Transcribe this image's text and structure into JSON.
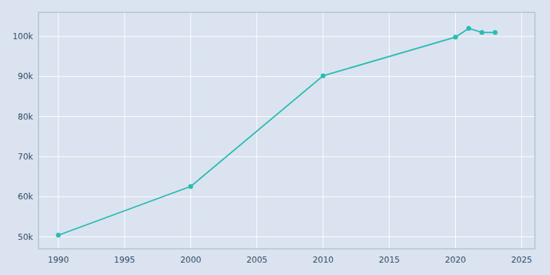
{
  "chart_data": {
    "type": "line",
    "x": [
      1990,
      2000,
      2010,
      2020,
      2021,
      2022,
      2023
    ],
    "values": [
      50418,
      62582,
      90173,
      99818,
      102000,
      101000,
      101000
    ],
    "color": "#2abcb4",
    "marker": "circle",
    "xlim": [
      1988.5,
      2026
    ],
    "ylim": [
      47000,
      106000
    ],
    "xticks": [
      1990,
      1995,
      2000,
      2005,
      2010,
      2015,
      2020,
      2025
    ],
    "yticks": [
      {
        "value": 50000,
        "label": "50k"
      },
      {
        "value": 60000,
        "label": "60k"
      },
      {
        "value": 70000,
        "label": "70k"
      },
      {
        "value": 80000,
        "label": "80k"
      },
      {
        "value": 90000,
        "label": "90k"
      },
      {
        "value": 100000,
        "label": "100k"
      }
    ],
    "grid": true
  }
}
